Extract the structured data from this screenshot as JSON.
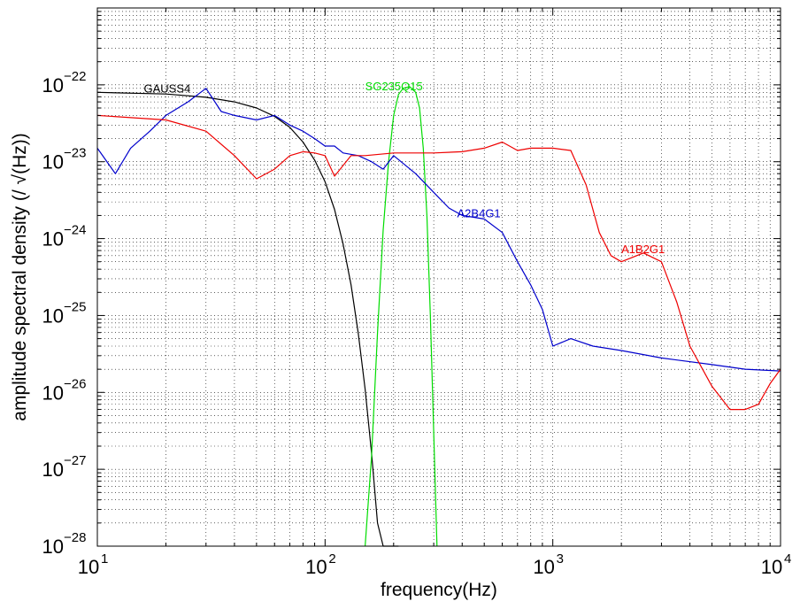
{
  "chart_data": {
    "type": "line",
    "xlabel": "frequency(Hz)",
    "ylabel": "amplitude spectral density (/ √(Hz))",
    "x_scale": "log",
    "y_scale": "log",
    "xlim": [
      10,
      10000
    ],
    "ylim": [
      1e-28,
      1e-21
    ],
    "grid": true,
    "x_ticks": [
      {
        "base": "10",
        "exp": "1",
        "value": 10
      },
      {
        "base": "10",
        "exp": "2",
        "value": 100
      },
      {
        "base": "10",
        "exp": "3",
        "value": 1000
      },
      {
        "base": "10",
        "exp": "4",
        "value": 10000
      }
    ],
    "y_ticks": [
      {
        "base": "10",
        "exp": "−22",
        "value": 1e-22
      },
      {
        "base": "10",
        "exp": "−23",
        "value": 1e-23
      },
      {
        "base": "10",
        "exp": "−24",
        "value": 1e-24
      },
      {
        "base": "10",
        "exp": "−25",
        "value": 1e-25
      },
      {
        "base": "10",
        "exp": "−26",
        "value": 1e-26
      },
      {
        "base": "10",
        "exp": "−27",
        "value": 1e-27
      },
      {
        "base": "10",
        "exp": "−28",
        "value": 1e-28
      }
    ],
    "series": [
      {
        "name": "GAUSS4",
        "color": "#000000",
        "label_at": [
          16,
          8e-23
        ],
        "x": [
          10,
          20,
          30,
          40,
          50,
          60,
          70,
          80,
          90,
          100,
          110,
          120,
          130,
          140,
          150,
          160,
          170,
          180,
          190,
          200,
          210
        ],
        "y": [
          8e-23,
          7.6e-23,
          6.9e-23,
          6e-23,
          5e-23,
          3.9e-23,
          2.8e-23,
          1.8e-23,
          1.05e-23,
          5.5e-24,
          2.4e-24,
          8.5e-25,
          2.5e-25,
          5.8e-26,
          1.1e-26,
          1.6e-27,
          2e-28,
          1e-28,
          1e-28,
          1e-28,
          1e-28
        ]
      },
      {
        "name": "SG235Q15",
        "color": "#00dd00",
        "label_at": [
          150,
          8.5e-23
        ],
        "x": [
          150,
          160,
          170,
          180,
          190,
          200,
          210,
          220,
          235,
          250,
          260,
          270,
          280,
          290,
          300,
          310
        ],
        "y": [
          1e-28,
          1.5e-27,
          6e-26,
          1.3e-24,
          1e-23,
          4e-23,
          7.5e-23,
          9e-23,
          9.5e-23,
          8e-23,
          5e-23,
          1.5e-23,
          2e-24,
          1e-25,
          3e-27,
          1e-28
        ]
      },
      {
        "name": "A2B4G1",
        "color": "#0000cc",
        "label_at": [
          380,
          1.9e-24
        ],
        "x": [
          10,
          12,
          14,
          17,
          20,
          25,
          30,
          35,
          40,
          50,
          60,
          70,
          80,
          90,
          100,
          110,
          120,
          140,
          160,
          180,
          200,
          250,
          300,
          350,
          400,
          500,
          600,
          700,
          800,
          900,
          1000,
          1200,
          1500,
          2000,
          3000,
          5000,
          7000,
          10000
        ],
        "y": [
          1.5e-23,
          7e-24,
          1.5e-23,
          2.5e-23,
          4e-23,
          6e-23,
          9e-23,
          4.5e-23,
          4e-23,
          3.5e-23,
          4e-23,
          3e-23,
          2.5e-23,
          2e-23,
          1.6e-23,
          1.6e-23,
          1.3e-23,
          1.2e-23,
          1e-23,
          8e-24,
          1.2e-23,
          7e-24,
          4e-24,
          2.5e-24,
          2e-24,
          1.8e-24,
          1.2e-24,
          5e-25,
          2.5e-25,
          1.2e-25,
          4e-26,
          5e-26,
          4e-26,
          3.5e-26,
          2.8e-26,
          2.3e-26,
          2e-26,
          1.9e-26
        ]
      },
      {
        "name": "A1B2G1",
        "color": "#ee0000",
        "label_at": [
          2000,
          6.5e-25
        ],
        "x": [
          10,
          20,
          30,
          40,
          50,
          60,
          70,
          80,
          90,
          100,
          110,
          130,
          150,
          200,
          300,
          400,
          500,
          600,
          700,
          800,
          1000,
          1200,
          1400,
          1600,
          1800,
          2000,
          2500,
          3000,
          3500,
          4000,
          5000,
          6000,
          7000,
          8000,
          9000,
          10000
        ],
        "y": [
          4e-23,
          3.5e-23,
          2.5e-23,
          1.2e-23,
          6e-24,
          8e-24,
          1.2e-23,
          1.35e-23,
          1.3e-23,
          1.2e-23,
          6.5e-24,
          1.2e-23,
          1.2e-23,
          1.3e-23,
          1.3e-23,
          1.35e-23,
          1.5e-23,
          1.8e-23,
          1.4e-23,
          1.5e-23,
          1.5e-23,
          1.4e-23,
          5e-24,
          1.2e-24,
          6e-25,
          5e-25,
          6.5e-25,
          5e-25,
          1.5e-25,
          4e-26,
          1.2e-26,
          6e-27,
          6e-27,
          7e-27,
          1.3e-26,
          2e-26
        ]
      }
    ]
  }
}
